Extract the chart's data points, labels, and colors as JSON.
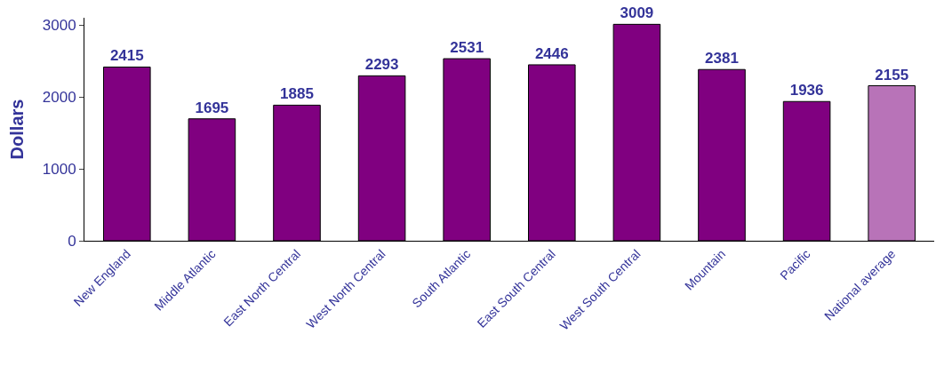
{
  "chart_data": {
    "type": "bar",
    "ylabel": "Dollars",
    "categories": [
      "New England",
      "Middle Atlantic",
      "East North Central",
      "West North Central",
      "South Atlantic",
      "East South Central",
      "West South Central",
      "Mountain",
      "Pacific",
      "National average"
    ],
    "values": [
      2415,
      1695,
      1885,
      2293,
      2531,
      2446,
      3009,
      2381,
      1936,
      2155
    ],
    "colors": [
      "#800080",
      "#800080",
      "#800080",
      "#800080",
      "#800080",
      "#800080",
      "#800080",
      "#800080",
      "#800080",
      "#b873b8"
    ],
    "ylim": [
      0,
      3100
    ],
    "yticks": [
      0,
      1000,
      2000,
      3000
    ],
    "data_labels": true
  }
}
